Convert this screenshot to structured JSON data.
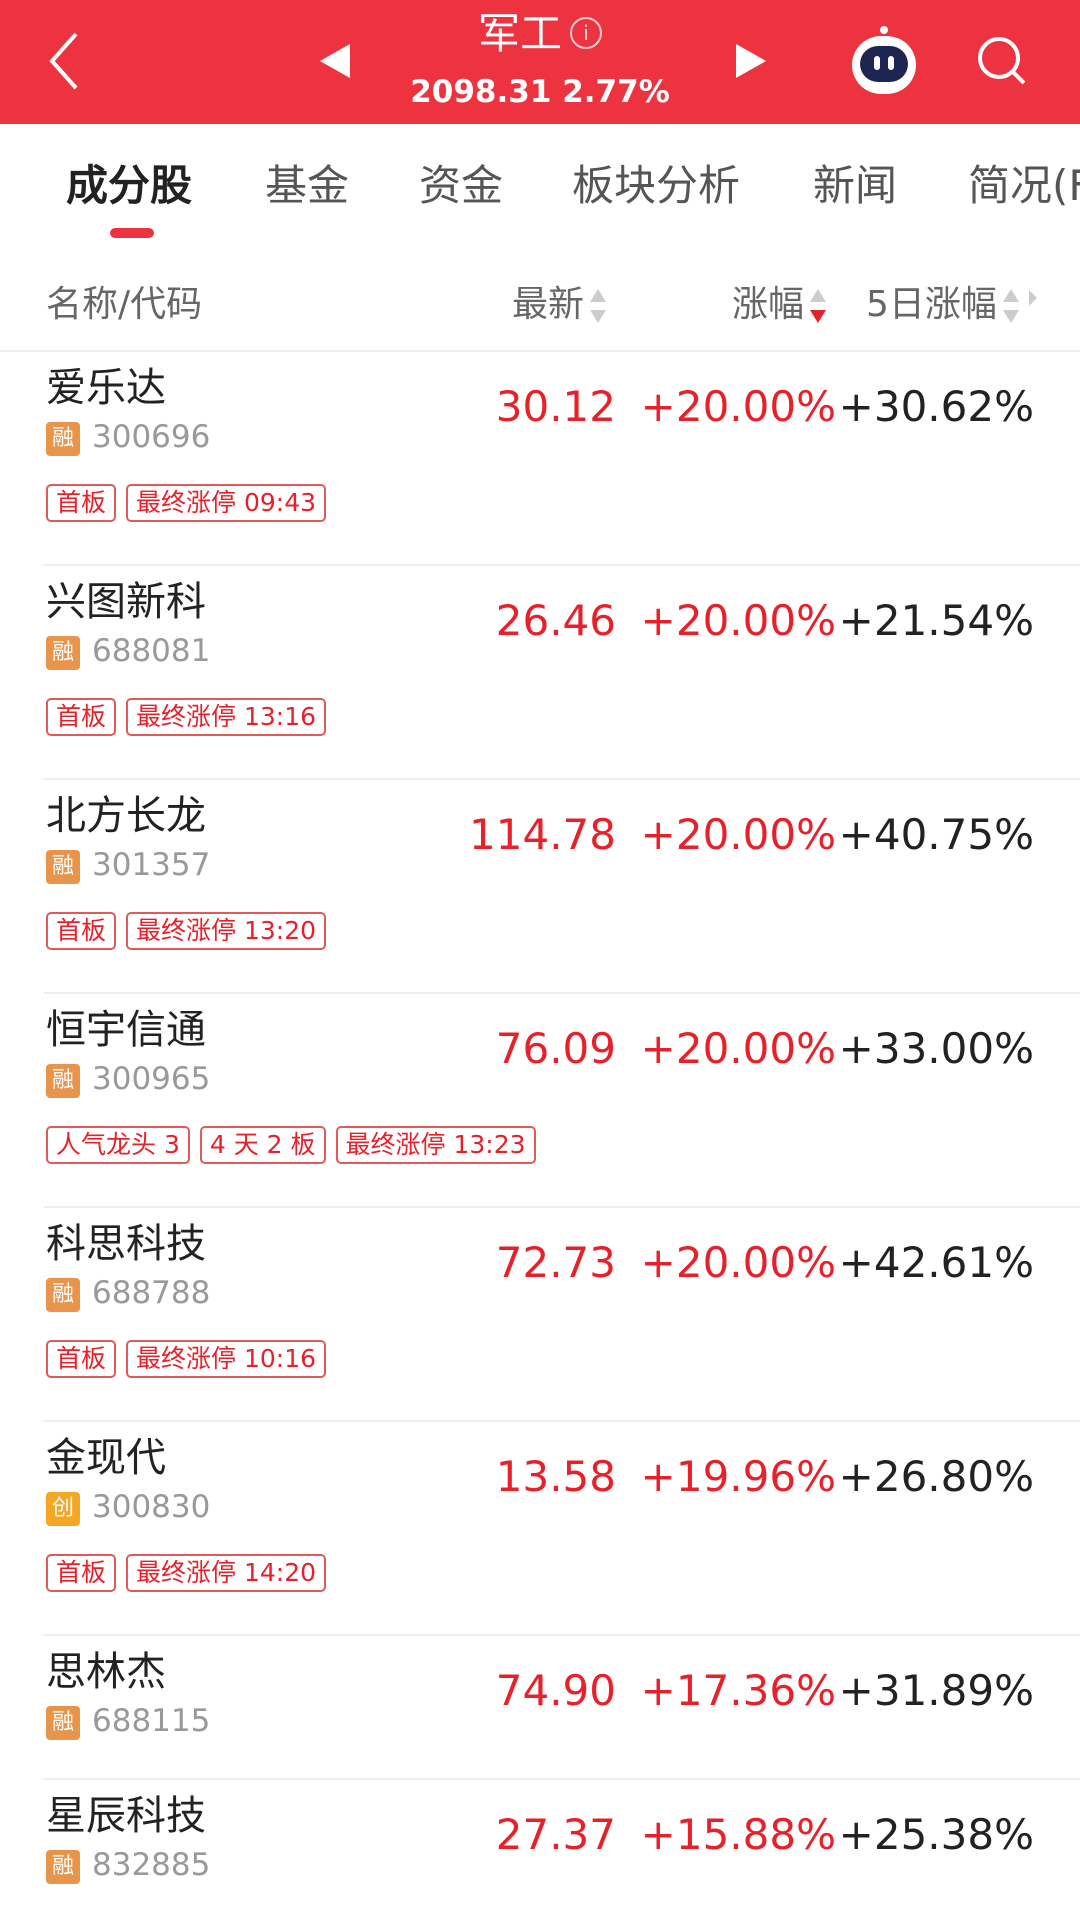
{
  "header": {
    "title": "军工",
    "info_icon": "i",
    "subtitle": "2098.31 2.77%",
    "color": "#ee3340"
  },
  "tabs": [
    {
      "label": "成分股",
      "active": true
    },
    {
      "label": "基金"
    },
    {
      "label": "资金"
    },
    {
      "label": "板块分析"
    },
    {
      "label": "新闻"
    },
    {
      "label": "简况(F"
    }
  ],
  "columns": {
    "name": "名称/代码",
    "latest": "最新",
    "change": "涨幅",
    "change5d": "5日涨幅"
  },
  "rows": [
    {
      "name": "爱乐达",
      "badge": "融",
      "code": "300696",
      "price": "30.12",
      "change": "+20.00%",
      "change5d": "+30.62%",
      "tags": [
        "首板",
        "最终涨停 09:43"
      ]
    },
    {
      "name": "兴图新科",
      "badge": "融",
      "code": "688081",
      "price": "26.46",
      "change": "+20.00%",
      "change5d": "+21.54%",
      "tags": [
        "首板",
        "最终涨停 13:16"
      ]
    },
    {
      "name": "北方长龙",
      "badge": "融",
      "code": "301357",
      "price": "114.78",
      "change": "+20.00%",
      "change5d": "+40.75%",
      "tags": [
        "首板",
        "最终涨停 13:20"
      ]
    },
    {
      "name": "恒宇信通",
      "badge": "融",
      "code": "300965",
      "price": "76.09",
      "change": "+20.00%",
      "change5d": "+33.00%",
      "tags": [
        "人气龙头 3",
        "4 天 2 板",
        "最终涨停 13:23"
      ]
    },
    {
      "name": "科思科技",
      "badge": "融",
      "code": "688788",
      "price": "72.73",
      "change": "+20.00%",
      "change5d": "+42.61%",
      "tags": [
        "首板",
        "最终涨停 10:16"
      ]
    },
    {
      "name": "金现代",
      "badge": "创",
      "code": "300830",
      "price": "13.58",
      "change": "+19.96%",
      "change5d": "+26.80%",
      "tags": [
        "首板",
        "最终涨停 14:20"
      ]
    },
    {
      "name": "思林杰",
      "badge": "融",
      "code": "688115",
      "price": "74.90",
      "change": "+17.36%",
      "change5d": "+31.89%",
      "tags": []
    },
    {
      "name": "星辰科技",
      "badge": "融",
      "code": "832885",
      "price": "27.37",
      "change": "+15.88%",
      "change5d": "+25.38%",
      "tags": []
    }
  ],
  "colors": {
    "up": "#e8202a",
    "badge_rong": "#e8944a",
    "badge_chuang": "#f5a623"
  }
}
